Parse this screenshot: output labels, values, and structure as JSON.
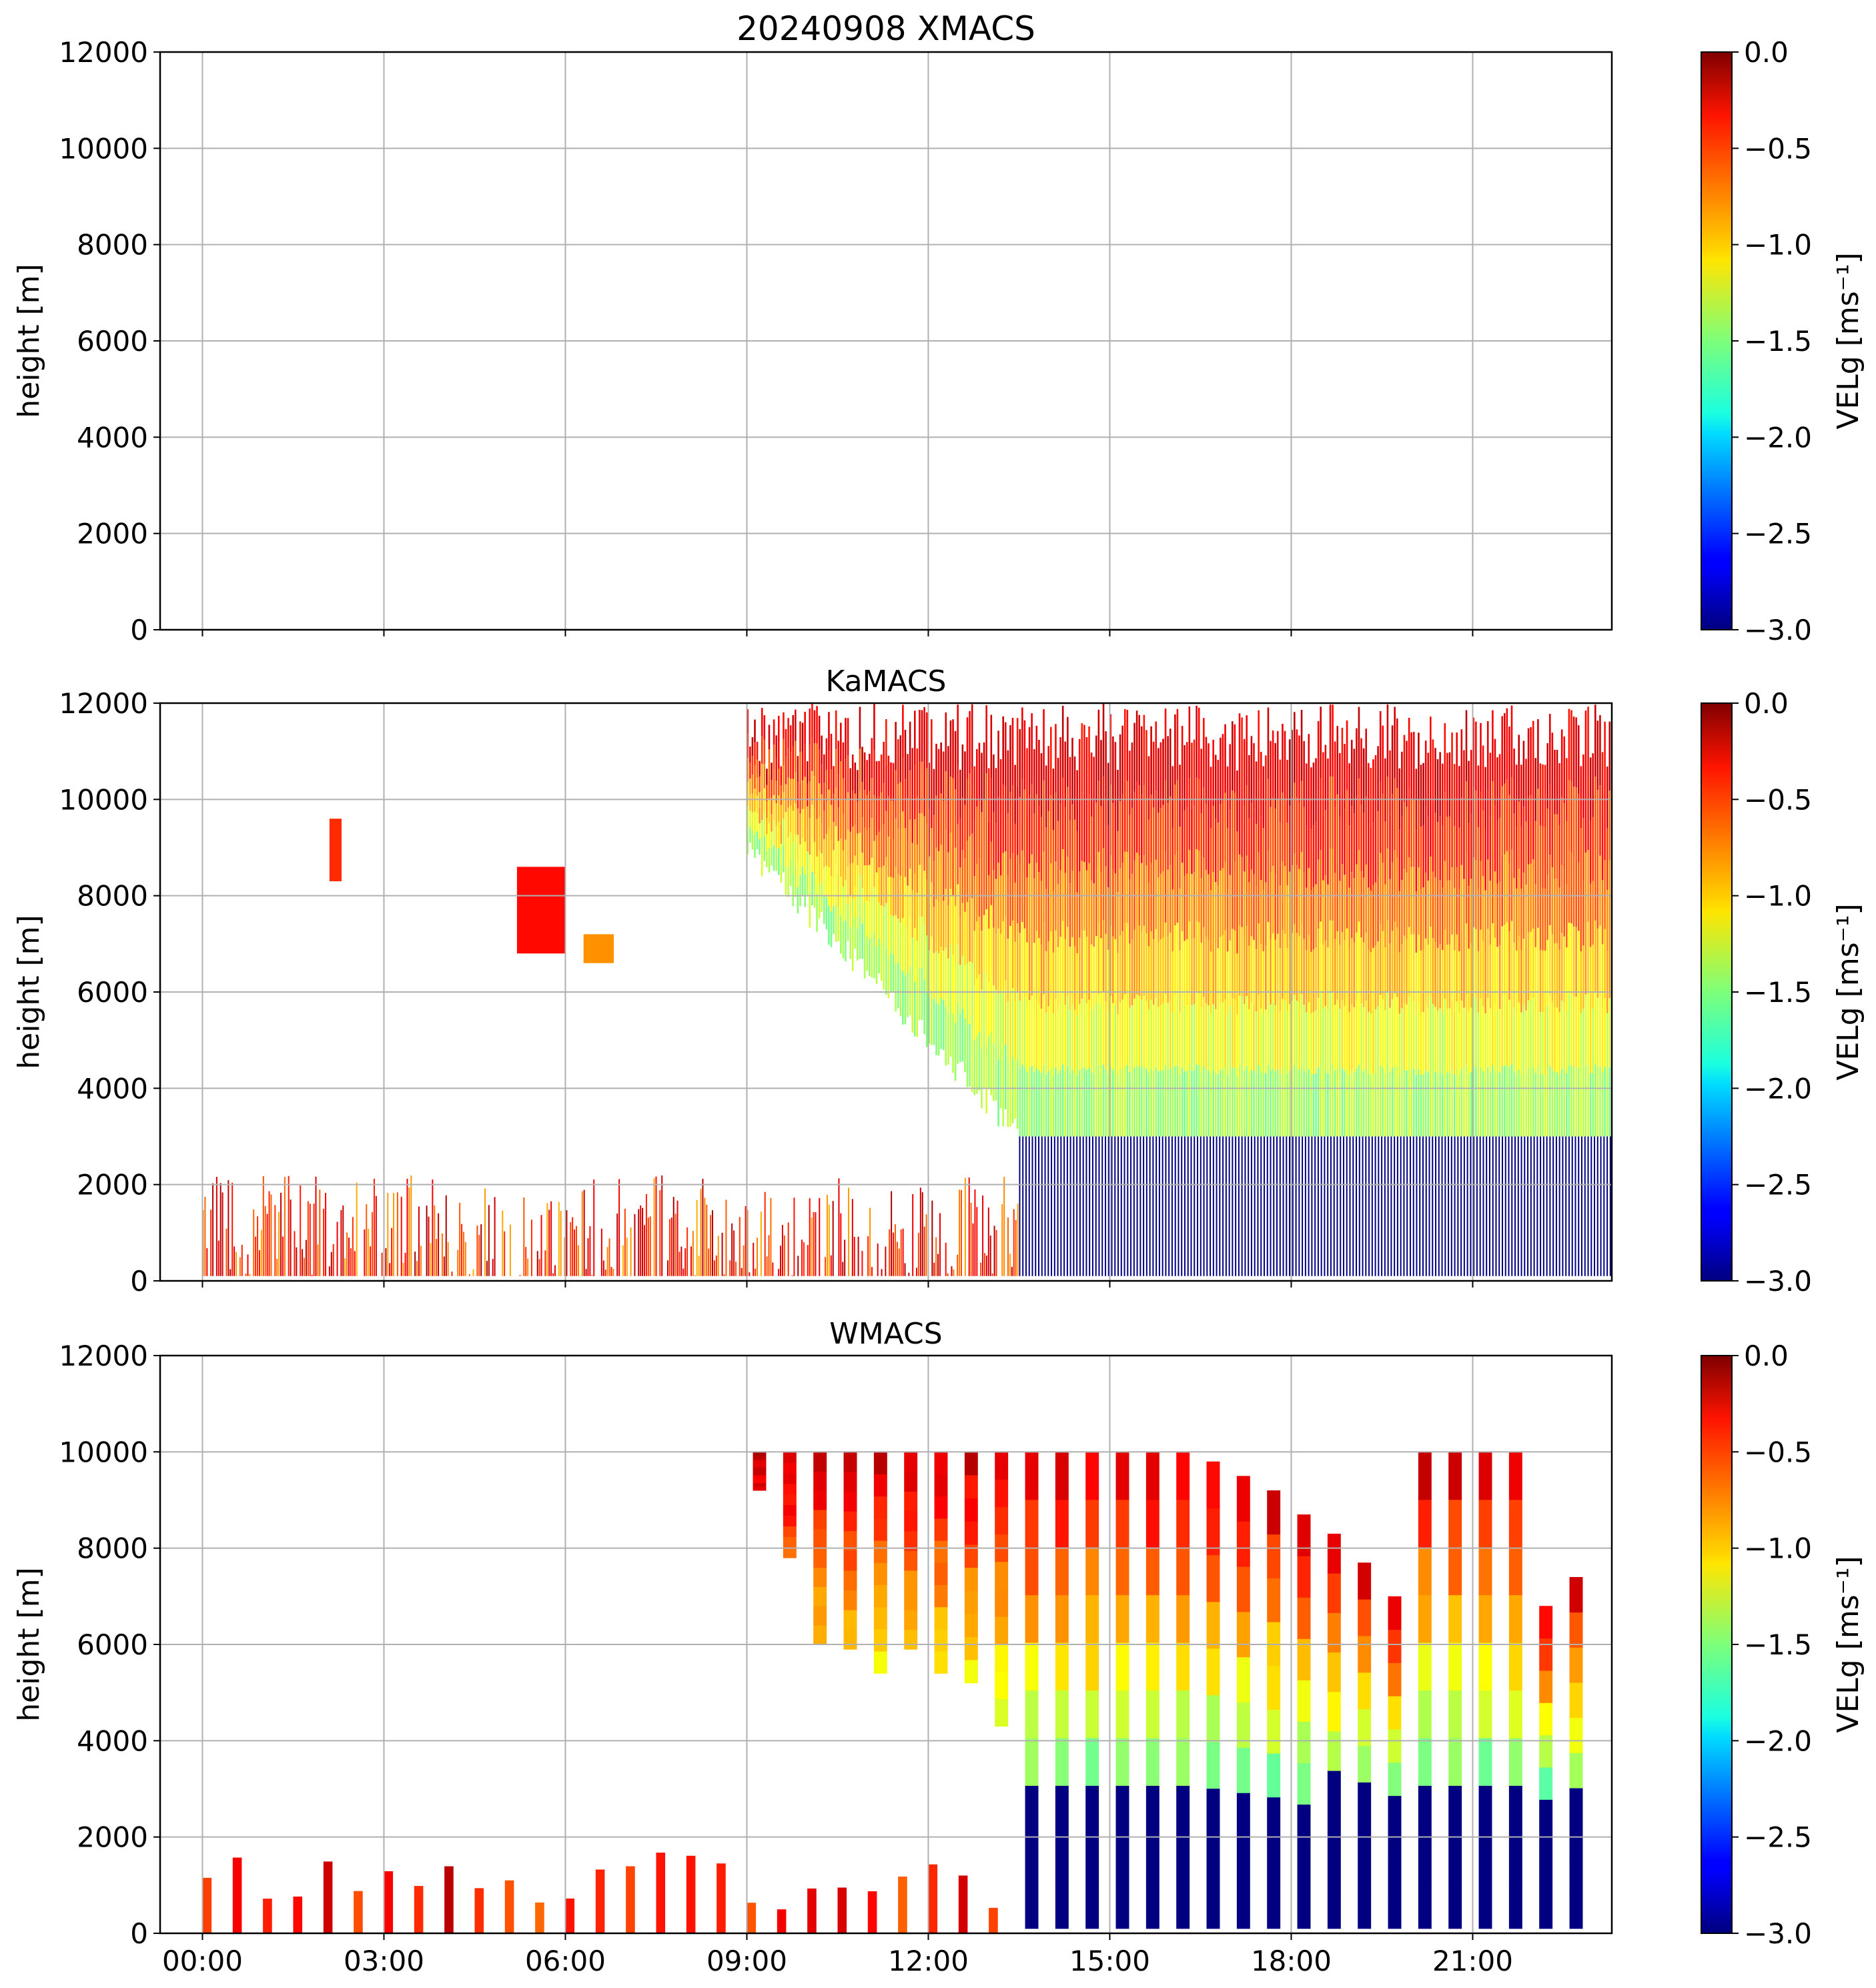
{
  "chart_data": [
    {
      "type": "heatmap",
      "title": "20240908 XMACS",
      "ylabel": "height [m]",
      "xlabel": "",
      "ylim": [
        0,
        12000
      ],
      "yticks": [
        "0",
        "2000",
        "4000",
        "6000",
        "8000",
        "10000",
        "12000"
      ],
      "xticks": [
        "00:00",
        "03:00",
        "06:00",
        "09:00",
        "12:00",
        "15:00",
        "18:00",
        "21:00"
      ],
      "show_xtick_labels": false,
      "grid": true,
      "data_description": "no data",
      "colorbar": {
        "label": "VELg [ms⁻¹]",
        "range": [
          -3.0,
          0.0
        ],
        "ticks": [
          "0.0",
          "−0.5",
          "−1.0",
          "−1.5",
          "−2.0",
          "−2.5",
          "−3.0"
        ],
        "colormap": "jet"
      }
    },
    {
      "type": "heatmap",
      "title": "KaMACS",
      "ylabel": "height [m]",
      "xlabel": "",
      "ylim": [
        0,
        12000
      ],
      "yticks": [
        "0",
        "2000",
        "4000",
        "6000",
        "8000",
        "10000",
        "12000"
      ],
      "xticks": [
        "00:00",
        "03:00",
        "06:00",
        "09:00",
        "12:00",
        "15:00",
        "18:00",
        "21:00"
      ],
      "show_xtick_labels": false,
      "grid": true,
      "regions": [
        {
          "name": "low clutter",
          "x_hours": [
            0.0,
            13.5
          ],
          "height_m": [
            100,
            2200
          ],
          "velocity": -0.1
        },
        {
          "name": "ice cloud",
          "x_hours": [
            9.0,
            24.0
          ],
          "height_m": [
            3000,
            11800
          ],
          "velocity_top": -0.2,
          "velocity_bottom": -1.5
        },
        {
          "name": "rain",
          "x_hours": [
            13.5,
            24.0
          ],
          "height_m": [
            100,
            3000
          ],
          "velocity": -3.0
        },
        {
          "name": "early patch 1",
          "x_hours": [
            2.1,
            2.3
          ],
          "height_m": [
            8300,
            9600
          ],
          "velocity": -0.5
        },
        {
          "name": "early patch 2",
          "x_hours": [
            5.2,
            6.0
          ],
          "height_m": [
            6800,
            8600
          ],
          "velocity": -0.4
        },
        {
          "name": "early patch 3",
          "x_hours": [
            6.3,
            6.8
          ],
          "height_m": [
            6600,
            7200
          ],
          "velocity": -0.8
        }
      ],
      "colorbar": {
        "label": "VELg [ms⁻¹]",
        "range": [
          -3.0,
          0.0
        ],
        "ticks": [
          "0.0",
          "−0.5",
          "−1.0",
          "−1.5",
          "−2.0",
          "−2.5",
          "−3.0"
        ],
        "colormap": "jet"
      }
    },
    {
      "type": "heatmap",
      "title": "WMACS",
      "ylabel": "height [m]",
      "xlabel": "",
      "ylim": [
        0,
        12000
      ],
      "yticks": [
        "0",
        "2000",
        "4000",
        "6000",
        "8000",
        "10000",
        "12000"
      ],
      "xticks": [
        "00:00",
        "03:00",
        "06:00",
        "09:00",
        "12:00",
        "15:00",
        "18:00",
        "21:00"
      ],
      "show_xtick_labels": true,
      "grid": true,
      "profiles": {
        "start_hour": 9.1,
        "step_hours": 0.5,
        "width_hours": 0.22,
        "tops_m": [
          10000,
          10000,
          10000,
          10000,
          10000,
          10000,
          10000,
          10000,
          10000,
          10000,
          10000,
          10000,
          10000,
          10000,
          10000,
          9800,
          9500,
          9200,
          8700,
          8300,
          7700,
          7000,
          10000,
          10000,
          10000,
          10000,
          6800,
          7400
        ],
        "bottoms_m": [
          9200,
          7800,
          6000,
          5900,
          5400,
          5900,
          5400,
          5200,
          4300,
          100,
          100,
          100,
          100,
          100,
          100,
          100,
          100,
          100,
          100,
          100,
          100,
          100,
          100,
          100,
          100,
          100,
          100,
          100
        ]
      },
      "colorbar": {
        "label": "VELg [ms⁻¹]",
        "range": [
          -3.0,
          0.0
        ],
        "ticks": [
          "0.0",
          "−0.5",
          "−1.0",
          "−1.5",
          "−2.0",
          "−2.5",
          "−3.0"
        ],
        "colormap": "jet"
      }
    }
  ]
}
